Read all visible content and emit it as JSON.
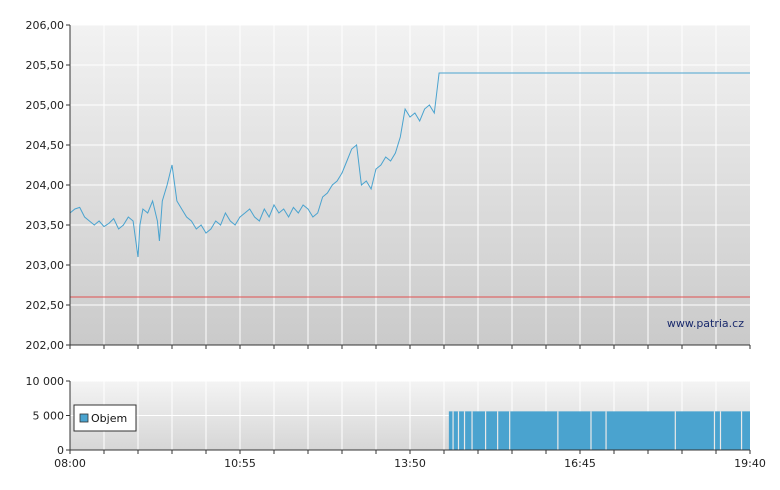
{
  "chart_data": [
    {
      "type": "line",
      "watermark": "www.patria.cz",
      "y_ticks": [
        "206,00",
        "205,50",
        "205,00",
        "204,50",
        "204,00",
        "203,50",
        "203,00",
        "202,50",
        "202,00"
      ],
      "y_tick_values": [
        206.0,
        205.5,
        205.0,
        204.5,
        204.0,
        203.5,
        203.0,
        202.5,
        202.0
      ],
      "ylim": [
        202.0,
        206.0
      ],
      "x_range_minutes": [
        0,
        700
      ],
      "reference_line": {
        "value": 202.6,
        "color": "#e05050"
      },
      "grid": true,
      "line_color": "#4aa3cf",
      "series": [
        {
          "x_minutes": [
            0,
            5,
            10,
            15,
            20,
            25,
            30,
            35,
            40,
            45,
            50,
            55,
            60,
            65,
            70,
            72,
            75,
            80,
            85,
            90,
            92,
            95,
            100,
            105,
            110,
            115,
            120,
            125,
            130,
            135,
            140,
            145,
            150,
            155,
            160,
            165,
            170,
            175,
            180,
            185,
            190,
            195,
            200,
            205,
            210,
            215,
            220,
            225,
            230,
            235,
            240,
            245,
            250,
            255,
            260,
            265,
            270,
            275,
            280,
            285,
            290,
            295,
            300,
            305,
            310,
            315,
            320,
            325,
            330,
            335,
            340,
            345,
            350,
            355,
            360,
            365,
            370,
            375,
            380,
            385,
            390,
            392,
            395,
            400,
            405,
            410,
            415,
            420,
            425,
            430,
            435,
            440,
            445,
            450,
            455,
            460,
            465,
            470,
            475,
            480,
            485,
            488,
            490,
            600,
            700
          ],
          "y": [
            203.65,
            203.7,
            203.72,
            203.6,
            203.55,
            203.5,
            203.55,
            203.48,
            203.52,
            203.58,
            203.45,
            203.5,
            203.6,
            203.55,
            203.1,
            203.5,
            203.7,
            203.65,
            203.8,
            203.55,
            203.3,
            203.8,
            204.0,
            204.25,
            203.8,
            203.7,
            203.6,
            203.55,
            203.45,
            203.5,
            203.4,
            203.45,
            203.55,
            203.5,
            203.65,
            203.55,
            203.5,
            203.6,
            203.65,
            203.7,
            203.6,
            203.55,
            203.7,
            203.6,
            203.75,
            203.65,
            203.7,
            203.6,
            203.72,
            203.65,
            203.75,
            203.7,
            203.6,
            203.65,
            203.85,
            203.9,
            204.0,
            204.05,
            204.15,
            204.3,
            204.45,
            204.5,
            204.0,
            204.05,
            203.95,
            204.2,
            204.25,
            204.35,
            204.3,
            204.4,
            204.6,
            204.95,
            204.85,
            204.9,
            204.8,
            204.95,
            205.0,
            204.9,
            205.4,
            205.4,
            205.4,
            205.4,
            205.4,
            205.4,
            205.4,
            205.4,
            205.4,
            205.4,
            205.4,
            205.4,
            205.4,
            205.4,
            205.4,
            205.4,
            205.4,
            205.4,
            205.4,
            205.4,
            205.4,
            205.4,
            205.4,
            205.4,
            205.4,
            205.4,
            205.4
          ]
        }
      ]
    },
    {
      "type": "bar",
      "legend": [
        "Objem"
      ],
      "y_ticks": [
        "10 000",
        "5 000",
        "0"
      ],
      "y_tick_values": [
        10000,
        5000,
        0
      ],
      "ylim": [
        0,
        10000
      ],
      "x_ticks": [
        "08:00",
        "10:55",
        "13:50",
        "16:45",
        "19:40"
      ],
      "x_tick_minutes": [
        0,
        175,
        350,
        525,
        700
      ],
      "bar_color": "#4aa3cf",
      "bars": [
        {
          "start_minute": 390,
          "end_minute": 700,
          "value": 5600
        }
      ]
    }
  ]
}
